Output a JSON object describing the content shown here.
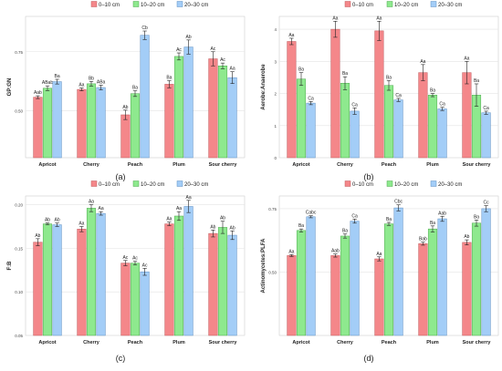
{
  "colors": {
    "s1": "#f4878a",
    "s2": "#8ee98e",
    "s3": "#a3cdf7"
  },
  "chart_data": [
    {
      "type": "bar",
      "panel_label": "(a)",
      "ylabel": "GP:GN",
      "ylim": [
        0.3,
        0.9
      ],
      "yticks": [
        "0.50",
        "0.75"
      ],
      "ytick_values": [
        0.5,
        0.75
      ],
      "grid": true,
      "legend": "top-center",
      "categories": [
        "Apricot",
        "Cherry",
        "Peach",
        "Plum",
        "Sour cherry"
      ],
      "series": [
        {
          "name": "0–10 cm",
          "values": [
            0.557,
            0.59,
            0.482,
            0.612,
            0.72
          ],
          "errors": [
            0.006,
            0.006,
            0.02,
            0.015,
            0.03
          ],
          "letters": [
            "Aab",
            "Aa",
            "Ab",
            "Ba",
            "Ac"
          ]
        },
        {
          "name": "10–20 cm",
          "values": [
            0.595,
            0.614,
            0.572,
            0.73,
            0.69
          ],
          "errors": [
            0.01,
            0.01,
            0.012,
            0.015,
            0.012
          ],
          "letters": [
            "ABab",
            "Bb",
            "Ba",
            "Ac",
            "Ac"
          ]
        },
        {
          "name": "20–30 cm",
          "values": [
            0.623,
            0.598,
            0.82,
            0.77,
            0.64
          ],
          "errors": [
            0.01,
            0.01,
            0.018,
            0.03,
            0.025
          ],
          "letters": [
            "Ba",
            "ABa",
            "Cb",
            "Ab",
            "Aa"
          ]
        }
      ]
    },
    {
      "type": "bar",
      "panel_label": "(b)",
      "ylabel": "Aerobe:Anaerobe",
      "ylim": [
        0,
        4.4
      ],
      "yticks": [
        "0",
        "1",
        "2",
        "3",
        "4"
      ],
      "ytick_values": [
        0,
        1,
        2,
        3,
        4
      ],
      "grid": true,
      "legend": "top-center",
      "categories": [
        "Apricot",
        "Cherry",
        "Peach",
        "Plum",
        "Sour cherry"
      ],
      "series": [
        {
          "name": "0–10 cm",
          "values": [
            3.62,
            4.0,
            3.95,
            2.65,
            2.65
          ],
          "errors": [
            0.1,
            0.25,
            0.3,
            0.25,
            0.35
          ],
          "letters": [
            "Aa",
            "Aa",
            "Aa",
            "Aa",
            "Aa"
          ]
        },
        {
          "name": "10–20 cm",
          "values": [
            2.45,
            2.32,
            2.25,
            1.95,
            1.95
          ],
          "errors": [
            0.2,
            0.2,
            0.15,
            0.05,
            0.35
          ],
          "letters": [
            "Ba",
            "Ba",
            "Ba",
            "Ba",
            "Ba"
          ]
        },
        {
          "name": "20–30 cm",
          "values": [
            1.7,
            1.45,
            1.8,
            1.52,
            1.4
          ],
          "errors": [
            0.05,
            0.1,
            0.05,
            0.05,
            0.05
          ],
          "letters": [
            "Ca",
            "Ca",
            "Ca",
            "Ca",
            "Ca"
          ]
        }
      ]
    },
    {
      "type": "bar",
      "panel_label": "(c)",
      "ylabel": "F:B",
      "ylim": [
        0.05,
        0.21
      ],
      "yticks": [
        "0.05",
        "0.10",
        "0.15",
        "0.20"
      ],
      "ytick_values": [
        0.05,
        0.1,
        0.15,
        0.2
      ],
      "grid": true,
      "legend": "top-center",
      "categories": [
        "Apricot",
        "Cherry",
        "Peach",
        "Plum",
        "Sour cherry"
      ],
      "series": [
        {
          "name": "0–10 cm",
          "values": [
            0.157,
            0.172,
            0.133,
            0.178,
            0.167
          ],
          "errors": [
            0.004,
            0.003,
            0.003,
            0.002,
            0.004
          ],
          "letters": [
            "Ab",
            "Aa",
            "Ac",
            "Aa",
            "Ab"
          ]
        },
        {
          "name": "10–20 cm",
          "values": [
            0.178,
            0.196,
            0.133,
            0.187,
            0.174
          ],
          "errors": [
            0.001,
            0.004,
            0.002,
            0.005,
            0.007
          ],
          "letters": [
            "Ab",
            "Aa",
            "Ac",
            "Aa",
            "Ab"
          ]
        },
        {
          "name": "20–30 cm",
          "values": [
            0.177,
            0.19,
            0.123,
            0.198,
            0.165
          ],
          "errors": [
            0.002,
            0.002,
            0.004,
            0.007,
            0.005
          ],
          "letters": [
            "Ab",
            "Aa",
            "Ac",
            "Aa",
            "Ab"
          ]
        }
      ]
    },
    {
      "type": "bar",
      "panel_label": "(d)",
      "ylabel": "Actinomycetes:PLFA",
      "ylim": [
        0.25,
        0.8
      ],
      "yticks": [
        "0.50",
        "0.75"
      ],
      "ytick_values": [
        0.5,
        0.75
      ],
      "grid": true,
      "legend": "top-center",
      "categories": [
        "Apricot",
        "Cherry",
        "Peach",
        "Plum",
        "Sour cherry"
      ],
      "series": [
        {
          "name": "0–10 cm",
          "values": [
            0.565,
            0.565,
            0.552,
            0.612,
            0.617
          ],
          "errors": [
            0.004,
            0.006,
            0.008,
            0.006,
            0.01
          ],
          "letters": [
            "Aa",
            "Aab",
            "Aa",
            "Bab",
            "Ab"
          ]
        },
        {
          "name": "10–20 cm",
          "values": [
            0.664,
            0.642,
            0.69,
            0.67,
            0.693
          ],
          "errors": [
            0.006,
            0.008,
            0.006,
            0.012,
            0.012
          ],
          "letters": [
            "Ba",
            "Ba",
            "Ba",
            "Ba",
            "Ba"
          ]
        },
        {
          "name": "20–30 cm",
          "values": [
            0.718,
            0.701,
            0.753,
            0.71,
            0.75
          ],
          "errors": [
            0.004,
            0.008,
            0.012,
            0.01,
            0.012
          ],
          "letters": [
            "Cabc",
            "Ca",
            "Cbc",
            "Aab",
            "Cc"
          ]
        }
      ]
    }
  ]
}
